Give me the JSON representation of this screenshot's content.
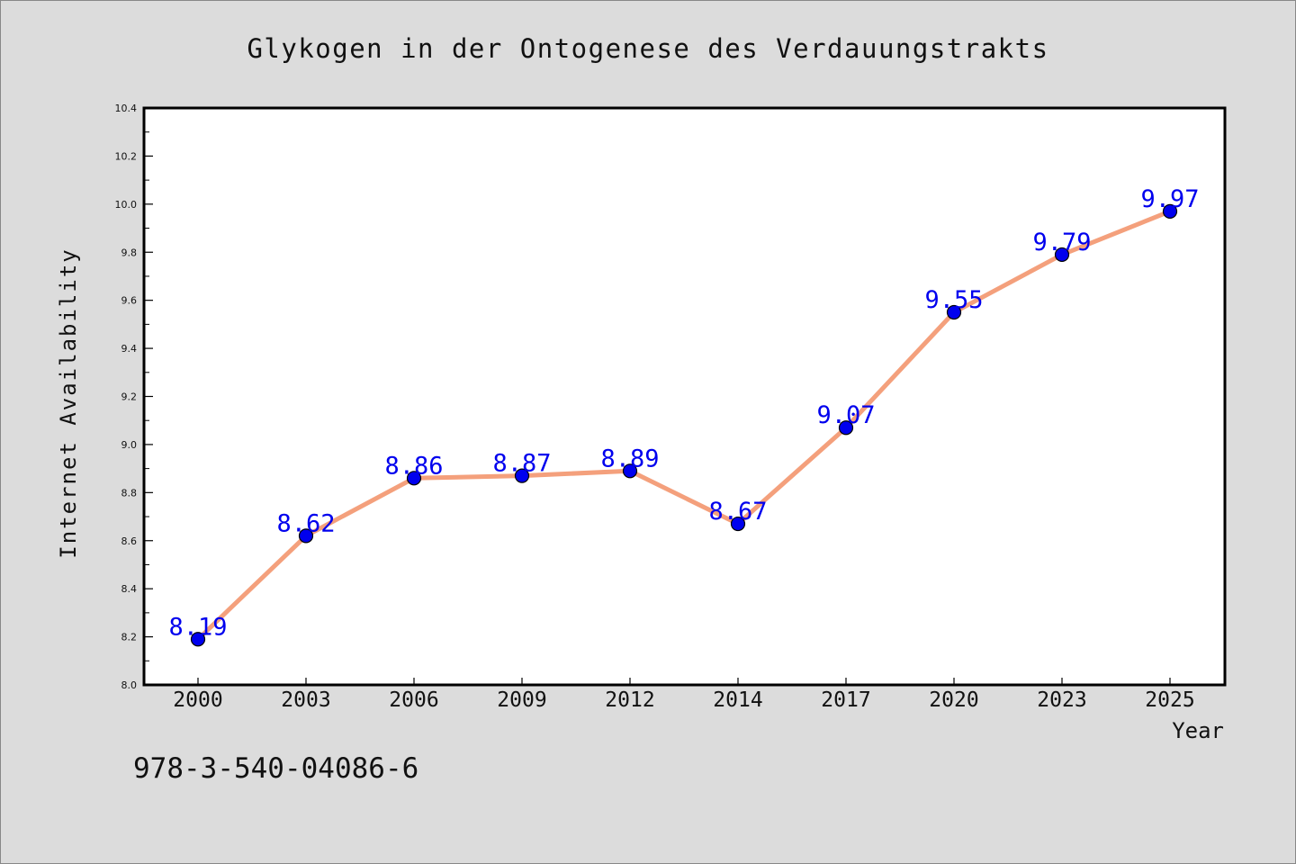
{
  "chart_data": {
    "type": "line",
    "title": "Glykogen in der Ontogenese des Verdauungstrakts",
    "xlabel": "Year",
    "ylabel": "Internet Availability",
    "categories": [
      "2000",
      "2003",
      "2006",
      "2009",
      "2012",
      "2014",
      "2017",
      "2020",
      "2023",
      "2025"
    ],
    "series": [
      {
        "values": [
          8.19,
          8.62,
          8.86,
          8.87,
          8.89,
          8.67,
          9.07,
          9.55,
          9.79,
          9.97
        ],
        "line_color": "#f4a07c",
        "marker_color": "#0000ee",
        "label_color": "#0000ee"
      }
    ],
    "ylim": [
      8.0,
      10.4
    ],
    "yticks": [
      "8.0",
      "8.2",
      "8.4",
      "8.6",
      "8.8",
      "9.0",
      "9.2",
      "9.4",
      "9.6",
      "9.8",
      "10.0",
      "10.2",
      "10.4"
    ],
    "data_labels": [
      "8.19",
      "8.62",
      "8.86",
      "8.87",
      "8.89",
      "8.67",
      "9.07",
      "9.55",
      "9.79",
      "9.97"
    ],
    "grid": false,
    "legend": "none"
  },
  "footer": {
    "isbn": "978-3-540-04086-6"
  }
}
